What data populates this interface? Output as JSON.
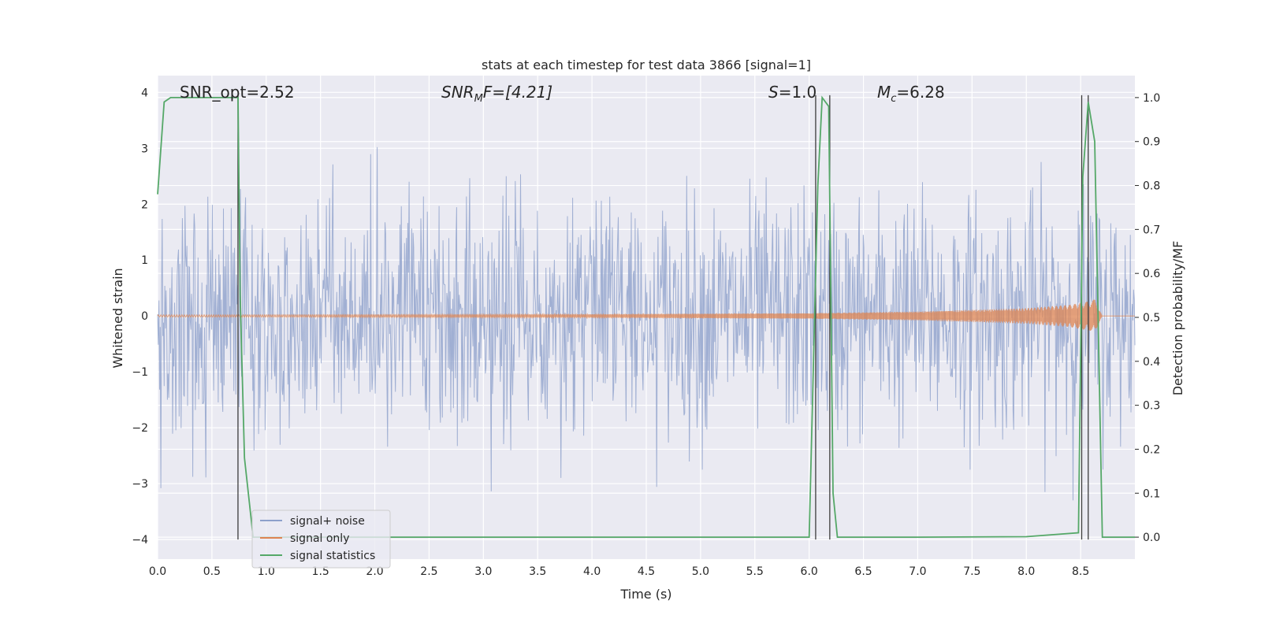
{
  "chart_data": {
    "type": "line",
    "title": "stats at each timestep for test data 3866 [signal=1]",
    "xlabel": "Time (s)",
    "ylabel_left": "Whitened strain",
    "ylabel_right": "Detection probability/MF",
    "xlim": [
      0.0,
      9.0
    ],
    "ylim_left": [
      -4.35,
      4.3
    ],
    "ylim_right": [
      -0.05,
      1.05
    ],
    "x_ticks": [
      "0.0",
      "0.5",
      "1.0",
      "1.5",
      "2.0",
      "2.5",
      "3.0",
      "3.5",
      "4.0",
      "4.5",
      "5.0",
      "5.5",
      "6.0",
      "6.5",
      "7.0",
      "7.5",
      "8.0",
      "8.5"
    ],
    "y_left_ticks": [
      "4",
      "3",
      "2",
      "1",
      "0",
      "−1",
      "−2",
      "−3",
      "−4"
    ],
    "y_right_ticks": [
      "1.0",
      "0.9",
      "0.8",
      "0.7",
      "0.6",
      "0.5",
      "0.4",
      "0.3",
      "0.2",
      "0.1",
      "0.0"
    ],
    "grid": true,
    "legend_position": "lower-left",
    "annotations": {
      "snr_opt": "SNR_opt=2.52",
      "snr_mf_main": "SNR",
      "snr_mf_sub": "M",
      "snr_mf_rest": "F=[4.21]",
      "s_main": "S",
      "s_rest": "=1.0",
      "mc_main": "M",
      "mc_sub": "c",
      "mc_rest": "=6.28"
    },
    "series": [
      {
        "name": "signal+ noise",
        "axis": "left",
        "color": "#8da0cb",
        "description_values": "noise-dominated whitened strain, roughly between -2.7 and 3.1 with spikes near 3.9 and -4.0"
      },
      {
        "name": "signal only",
        "axis": "left",
        "color": "#dd8452",
        "envelope": {
          "x": [
            0.0,
            4.0,
            6.0,
            7.0,
            8.0,
            8.4,
            8.6,
            8.63,
            8.7,
            9.0
          ],
          "amplitude": [
            0.02,
            0.03,
            0.05,
            0.08,
            0.14,
            0.2,
            0.27,
            0.3,
            0.0,
            0.0
          ]
        }
      },
      {
        "name": "signal statistics",
        "axis": "right",
        "color": "#55a868",
        "x": [
          0.0,
          0.06,
          0.12,
          0.3,
          0.5,
          0.74,
          0.76,
          0.8,
          0.88,
          1.0,
          3.0,
          5.0,
          6.0,
          6.08,
          6.12,
          6.18,
          6.22,
          6.26,
          7.0,
          8.0,
          8.48,
          8.52,
          8.57,
          8.63,
          8.7,
          9.0
        ],
        "y": [
          0.78,
          0.99,
          1.0,
          1.0,
          1.0,
          1.0,
          0.55,
          0.18,
          0.0,
          0.0,
          0.0,
          0.0,
          0.0,
          0.8,
          1.0,
          0.98,
          0.1,
          0.0,
          0.0,
          0.001,
          0.01,
          0.82,
          0.99,
          0.9,
          0.0,
          0.0
        ]
      }
    ],
    "vertical_lines": {
      "color": "#3c3c3c",
      "x": [
        0.74,
        6.06,
        6.19,
        8.51,
        8.57
      ]
    }
  }
}
